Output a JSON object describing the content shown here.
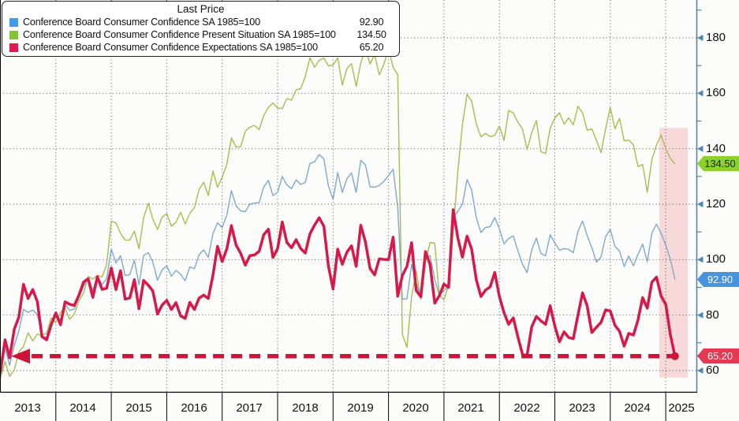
{
  "legend": {
    "title": "Last Price",
    "items": [
      {
        "label": "Conference Board Consumer Confidence SA 1985=100",
        "value": "92.90",
        "color": "#429be5"
      },
      {
        "label": "Conference Board Consumer Confidence Present Situation SA 1985=100",
        "value": "134.50",
        "color": "#7fc632"
      },
      {
        "label": "Conference Board Consumer Confidence Expectations SA 1985=100",
        "value": "65.20",
        "color": "#e4174e"
      }
    ]
  },
  "y_axis": {
    "side": "right",
    "ticks": [
      180,
      160,
      140,
      120,
      100,
      80,
      60
    ],
    "minor_ticks": [
      190,
      170,
      150,
      130,
      110,
      90,
      70
    ],
    "axis_color": "#4d87b5",
    "badges": [
      {
        "value": "134.50",
        "bg": "#8ed02c",
        "text": "#102a00"
      },
      {
        "value": "92.90",
        "bg": "#4793dc",
        "text": "#ffffff"
      },
      {
        "value": "65.20",
        "bg": "#e23a52",
        "text": "#ffffff"
      }
    ]
  },
  "x_axis": {
    "years": [
      2013,
      2014,
      2015,
      2016,
      2017,
      2018,
      2019,
      2020,
      2021,
      2022,
      2023,
      2024,
      2025
    ]
  },
  "chart_data": {
    "type": "line",
    "frequency": "monthly",
    "x_start": "2013-01",
    "x_end": "2025-03",
    "ylim_visible": [
      52,
      193
    ],
    "grid": "dotted",
    "legend_position": "top-left",
    "series": [
      {
        "name": "Conference Board Consumer Confidence Present Situation SA 1985=100",
        "color": "#a6bd4f",
        "stroke_width": 1.4,
        "last_price": 134.5,
        "values": [
          57.3,
          63.3,
          57.9,
          60.2,
          66.7,
          68.7,
          73.6,
          70.7,
          73.2,
          72.6,
          73.5,
          79.0,
          77.3,
          81.0,
          82.5,
          78.5,
          80.4,
          85.1,
          87.9,
          93.9,
          93.0,
          94.4,
          93.7,
          98.2,
          113.9,
          113.3,
          109.5,
          107.1,
          107.1,
          110.3,
          104.0,
          115.1,
          120.3,
          114.6,
          110.9,
          115.3,
          116.6,
          112.1,
          113.5,
          117.1,
          112.9,
          116.7,
          118.8,
          125.3,
          127.9,
          123.1,
          132.0,
          126.1,
          129.7,
          134.4,
          143.9,
          140.6,
          140.7,
          146.3,
          147.8,
          148.4,
          146.9,
          152.0,
          154.9,
          156.5,
          154.7,
          154.5,
          158.1,
          157.5,
          161.2,
          161.7,
          166.1,
          172.8,
          169.4,
          171.9,
          172.7,
          169.9,
          170.2,
          172.8,
          163.0,
          169.0,
          170.7,
          162.5,
          170.9,
          176.0,
          170.6,
          173.9,
          166.6,
          170.5,
          175.9,
          169.3,
          166.7,
          73.0,
          68.4,
          86.7,
          95.9,
          85.8,
          98.9,
          106.2,
          105.9,
          87.2,
          85.5,
          90.9,
          110.1,
          131.9,
          148.7,
          159.6,
          157.2,
          148.9,
          144.3,
          145.5,
          144.4,
          144.8,
          148.2,
          143.0,
          153.8,
          152.9,
          149.6,
          147.1,
          139.7,
          145.8,
          150.2,
          138.9,
          138.3,
          147.4,
          151.1,
          153.0,
          148.9,
          151.1,
          148.6,
          155.3,
          153.0,
          146.7,
          147.1,
          143.1,
          138.6,
          147.2,
          154.9,
          147.2,
          151.0,
          142.9,
          143.1,
          141.5,
          133.6,
          134.3,
          124.3,
          136.1,
          141.4,
          144.9,
          140.1,
          136.5,
          134.5
        ]
      },
      {
        "name": "Conference Board Consumer Confidence SA 1985=100",
        "color": "#7fa8cf",
        "stroke_width": 1.4,
        "last_price": 92.9,
        "values": [
          58.6,
          68.0,
          61.9,
          69.0,
          74.3,
          82.1,
          81.0,
          81.8,
          80.2,
          72.4,
          72.0,
          77.5,
          79.4,
          78.3,
          83.9,
          81.7,
          82.2,
          86.4,
          90.3,
          93.4,
          89.0,
          94.1,
          91.0,
          93.1,
          103.8,
          98.8,
          101.4,
          94.3,
          94.6,
          99.8,
          91.0,
          101.5,
          102.6,
          99.1,
          92.6,
          96.3,
          97.8,
          94.0,
          96.1,
          94.7,
          92.4,
          97.4,
          96.7,
          101.8,
          103.5,
          100.8,
          109.4,
          113.3,
          111.6,
          116.1,
          124.9,
          119.4,
          117.6,
          117.3,
          120.0,
          120.4,
          120.6,
          126.2,
          128.6,
          123.1,
          124.3,
          130.0,
          127.0,
          125.6,
          128.8,
          127.1,
          127.9,
          134.7,
          135.3,
          137.9,
          136.4,
          126.6,
          121.7,
          131.4,
          124.2,
          129.2,
          131.3,
          124.3,
          135.8,
          134.2,
          126.3,
          126.1,
          126.8,
          128.2,
          130.4,
          132.6,
          118.8,
          85.7,
          85.9,
          98.3,
          91.7,
          86.3,
          101.3,
          101.4,
          92.9,
          87.1,
          88.9,
          90.4,
          114.9,
          117.5,
          120.0,
          128.9,
          125.1,
          115.2,
          109.8,
          111.6,
          111.9,
          115.2,
          111.1,
          105.7,
          107.6,
          108.6,
          103.2,
          98.4,
          95.3,
          103.6,
          107.8,
          102.2,
          101.4,
          109.0,
          106.0,
          103.4,
          104.0,
          103.7,
          102.5,
          110.1,
          114.0,
          108.7,
          104.3,
          99.1,
          101.0,
          108.3,
          110.9,
          104.8,
          103.1,
          97.5,
          101.3,
          97.8,
          101.9,
          105.6,
          99.2,
          109.6,
          112.8,
          109.5,
          105.3,
          100.1,
          92.9
        ]
      },
      {
        "name": "Conference Board Consumer Confidence Expectations SA 1985=100",
        "color": "#d6194b",
        "stroke_width": 3.5,
        "last_price": 65.2,
        "values": [
          59.5,
          71.1,
          64.6,
          74.9,
          79.3,
          91.1,
          86.0,
          89.2,
          84.8,
          72.2,
          71.1,
          76.5,
          80.8,
          76.5,
          84.8,
          83.9,
          83.5,
          87.2,
          91.9,
          93.1,
          86.4,
          93.8,
          89.3,
          89.7,
          97.0,
          89.2,
          96.0,
          85.8,
          86.2,
          92.8,
          82.3,
          92.5,
          90.8,
          88.7,
          80.4,
          83.6,
          85.3,
          82.0,
          84.5,
          79.7,
          78.8,
          84.6,
          82.0,
          86.1,
          87.2,
          86.0,
          94.4,
          104.8,
          99.3,
          103.9,
          112.3,
          105.3,
          102.3,
          98.0,
          101.4,
          101.7,
          103.0,
          109.0,
          111.0,
          100.8,
          104.0,
          113.6,
          106.2,
          104.3,
          107.2,
          104.0,
          102.4,
          109.3,
          112.5,
          115.1,
          112.1,
          97.7,
          89.4,
          103.8,
          98.3,
          102.7,
          105.0,
          97.6,
          112.4,
          106.4,
          96.8,
          94.5,
          100.3,
          100.1,
          100.0,
          108.1,
          86.8,
          94.3,
          97.6,
          106.1,
          88.9,
          86.6,
          102.9,
          98.2,
          84.3,
          87.0,
          91.2,
          90.0,
          118.0,
          107.9,
          100.9,
          108.5,
          103.8,
          92.8,
          86.7,
          89.0,
          90.2,
          95.4,
          86.7,
          80.8,
          76.7,
          79.0,
          72.2,
          65.8,
          65.6,
          75.8,
          79.5,
          77.9,
          76.7,
          83.4,
          76.0,
          70.4,
          74.0,
          71.9,
          71.5,
          80.0,
          88.0,
          83.3,
          73.7,
          75.6,
          77.4,
          81.9,
          81.5,
          76.3,
          74.2,
          68.8,
          73.4,
          72.8,
          78.2,
          86.3,
          82.5,
          91.9,
          93.7,
          86.9,
          83.9,
          72.9,
          65.2
        ]
      }
    ],
    "annotations": {
      "dashed_arrow": {
        "value": 65.2,
        "color": "#ce1537",
        "direction": "left",
        "start_month_index": 3,
        "end_month_index": 146,
        "end_dot": true
      },
      "highlight_band": {
        "color": "#f0a9ad",
        "opacity": 0.42,
        "start_month_index": 142.6,
        "end_month_index": 148.8,
        "top_value": 147.5,
        "bottom_value": 57.5
      }
    }
  }
}
